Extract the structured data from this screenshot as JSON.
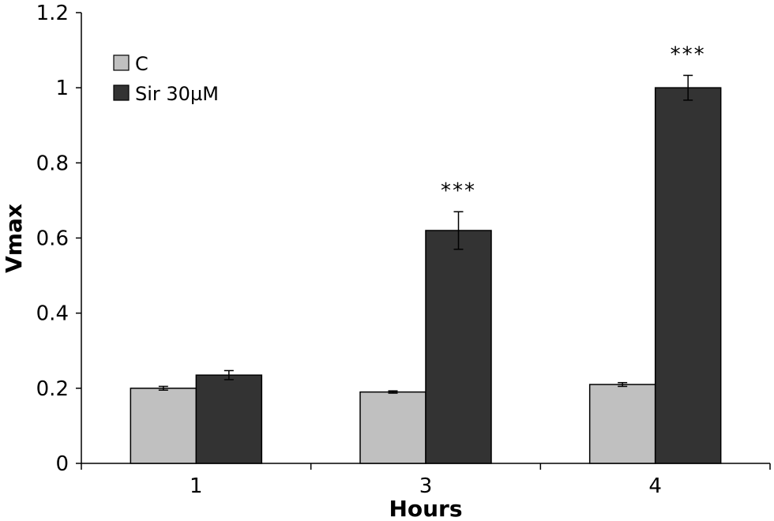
{
  "chart_data": {
    "type": "bar",
    "title": "",
    "xlabel": "Hours",
    "ylabel": "Vmax",
    "ylim": [
      0,
      1.2
    ],
    "yticks": [
      "0",
      "0.2",
      "0.4",
      "0.6",
      "0.8",
      "1",
      "1.2"
    ],
    "categories": [
      "1",
      "3",
      "4"
    ],
    "series": [
      {
        "name": "C",
        "color": "#c0c0c0",
        "values": [
          0.2,
          0.19,
          0.21
        ],
        "errors": [
          0.005,
          0.003,
          0.005
        ]
      },
      {
        "name": "Sir 30µM",
        "color": "#333333",
        "values": [
          0.235,
          0.62,
          1.0
        ],
        "errors": [
          0.012,
          0.05,
          0.033
        ]
      }
    ],
    "annotations": [
      {
        "category": "3",
        "series": "Sir 30µM",
        "text": "***"
      },
      {
        "category": "4",
        "series": "Sir 30µM",
        "text": "***"
      }
    ],
    "legend": "top-left",
    "grid": false
  }
}
